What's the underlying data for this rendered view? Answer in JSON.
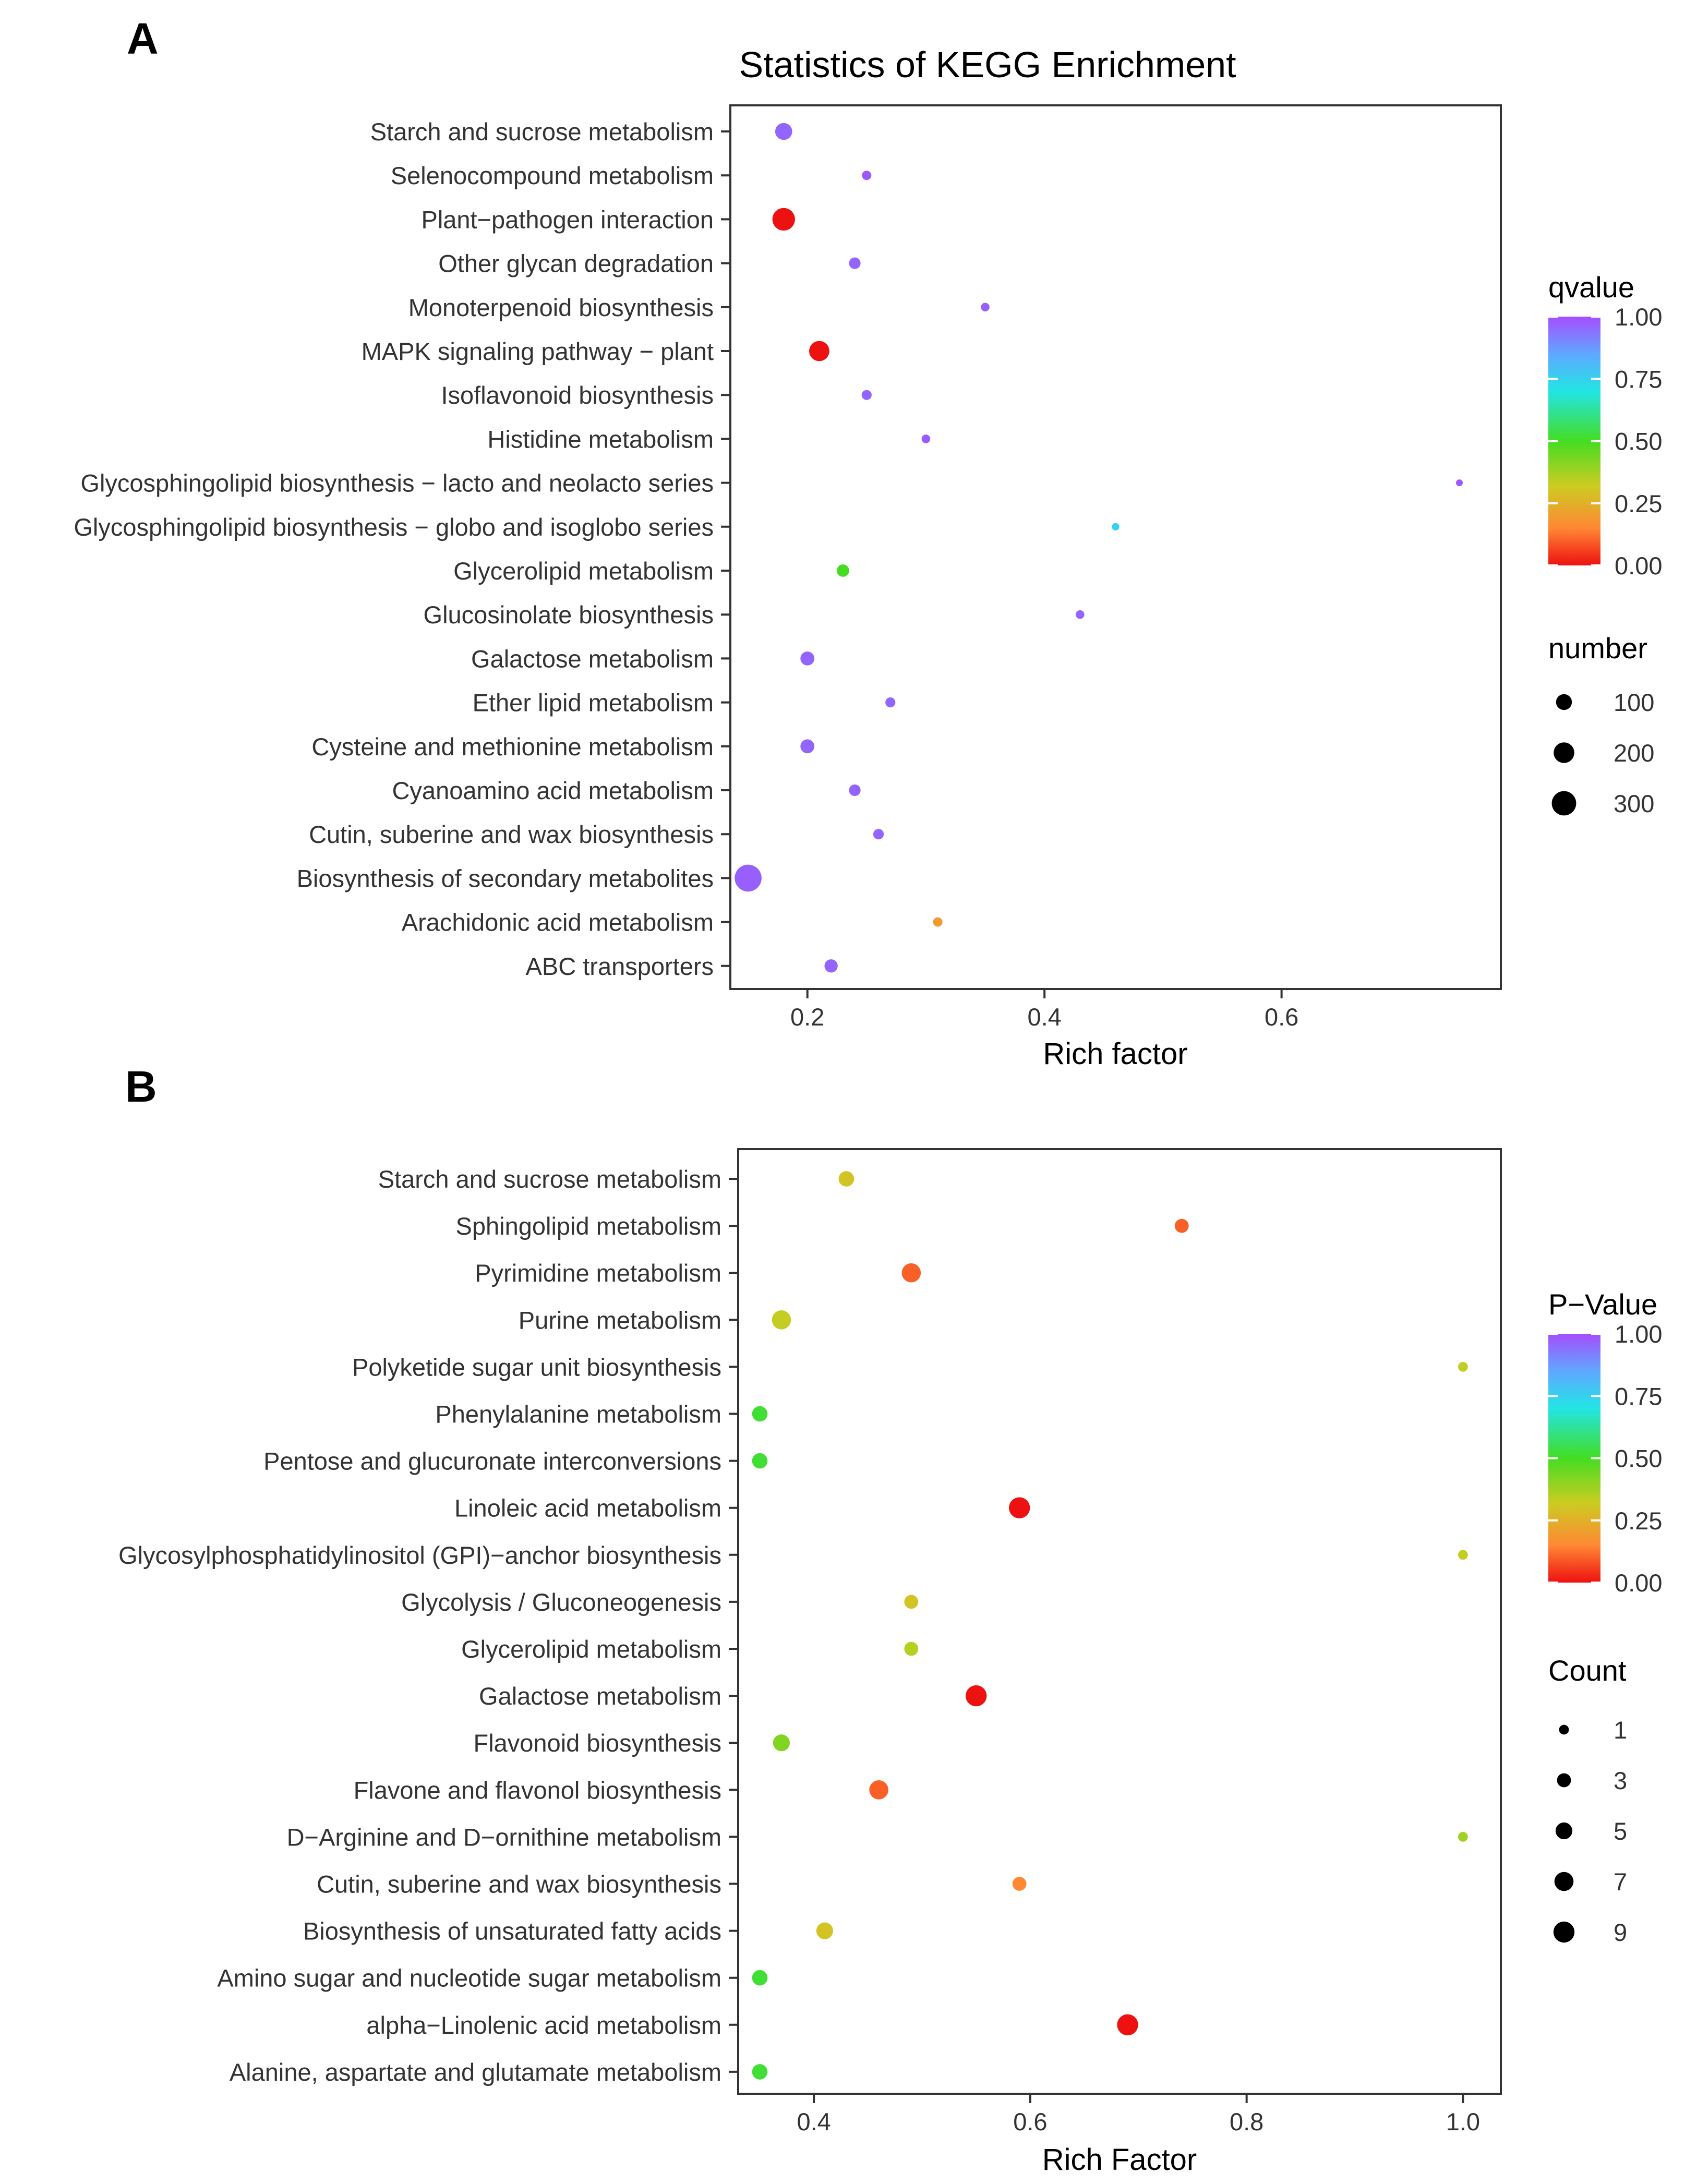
{
  "chart_data": [
    {
      "panel_label": "A",
      "type": "scatter",
      "title": "Statistics of KEGG Enrichment",
      "xlabel": "Rich factor",
      "ylabel": "",
      "xlim": [
        0.135,
        0.785
      ],
      "xticks": [
        0.2,
        0.4,
        0.6
      ],
      "xtick_labels": [
        "0.2",
        "0.4",
        "0.6"
      ],
      "grid": false,
      "color_legend": {
        "title": "qvalue",
        "ticks": [
          1.0,
          0.75,
          0.5,
          0.25,
          0.0
        ],
        "tick_labels": [
          "1.00",
          "0.75",
          "0.50",
          "0.25",
          "0.00"
        ]
      },
      "size_legend": {
        "title": "number",
        "values": [
          100,
          200,
          300
        ],
        "labels": [
          "100",
          "200",
          "300"
        ]
      },
      "points": [
        {
          "term": "Starch and sucrose metabolism",
          "rich_factor": 0.18,
          "qvalue": 0.96,
          "number": 120
        },
        {
          "term": "Selenocompound metabolism",
          "rich_factor": 0.25,
          "qvalue": 0.98,
          "number": 20
        },
        {
          "term": "Plant−pathogen interaction",
          "rich_factor": 0.18,
          "qvalue": 0.0,
          "number": 250
        },
        {
          "term": "Other glycan degradation",
          "rich_factor": 0.24,
          "qvalue": 0.96,
          "number": 40
        },
        {
          "term": "Monoterpenoid biosynthesis",
          "rich_factor": 0.35,
          "qvalue": 0.97,
          "number": 15
        },
        {
          "term": "MAPK signaling pathway − plant",
          "rich_factor": 0.21,
          "qvalue": 0.0,
          "number": 190
        },
        {
          "term": "Isoflavonoid biosynthesis",
          "rich_factor": 0.25,
          "qvalue": 0.96,
          "number": 25
        },
        {
          "term": "Histidine metabolism",
          "rich_factor": 0.3,
          "qvalue": 0.98,
          "number": 15
        },
        {
          "term": "Glycosphingolipid biosynthesis − lacto and neolacto series",
          "rich_factor": 0.75,
          "qvalue": 0.98,
          "number": 5
        },
        {
          "term": "Glycosphingolipid biosynthesis − globo and isoglobo series",
          "rich_factor": 0.46,
          "qvalue": 0.75,
          "number": 8
        },
        {
          "term": "Glycerolipid metabolism",
          "rich_factor": 0.23,
          "qvalue": 0.5,
          "number": 50
        },
        {
          "term": "Glucosinolate biosynthesis",
          "rich_factor": 0.43,
          "qvalue": 0.96,
          "number": 15
        },
        {
          "term": "Galactose metabolism",
          "rich_factor": 0.2,
          "qvalue": 0.96,
          "number": 70
        },
        {
          "term": "Ether lipid metabolism",
          "rich_factor": 0.27,
          "qvalue": 0.96,
          "number": 25
        },
        {
          "term": "Cysteine and methionine metabolism",
          "rich_factor": 0.2,
          "qvalue": 0.96,
          "number": 70
        },
        {
          "term": "Cyanoamino acid metabolism",
          "rich_factor": 0.24,
          "qvalue": 0.96,
          "number": 40
        },
        {
          "term": "Cutin, suberine and wax biosynthesis",
          "rich_factor": 0.26,
          "qvalue": 0.96,
          "number": 30
        },
        {
          "term": "Biosynthesis of secondary metabolites",
          "rich_factor": 0.15,
          "qvalue": 0.97,
          "number": 380
        },
        {
          "term": "Arachidonic acid metabolism",
          "rich_factor": 0.31,
          "qvalue": 0.2,
          "number": 20
        },
        {
          "term": "ABC transporters",
          "rich_factor": 0.22,
          "qvalue": 0.96,
          "number": 60
        }
      ]
    },
    {
      "panel_label": "B",
      "type": "scatter",
      "title": "",
      "xlabel": "Rich Factor",
      "ylabel": "",
      "xlim": [
        0.33,
        1.035
      ],
      "xticks": [
        0.4,
        0.6,
        0.8,
        1.0
      ],
      "xtick_labels": [
        "0.4",
        "0.6",
        "0.8",
        "1.0"
      ],
      "grid": false,
      "color_legend": {
        "title": "P−Value",
        "ticks": [
          1.0,
          0.75,
          0.5,
          0.25,
          0.0
        ],
        "tick_labels": [
          "1.00",
          "0.75",
          "0.50",
          "0.25",
          "0.00"
        ]
      },
      "size_legend": {
        "title": "Count",
        "values": [
          1,
          3,
          5,
          7,
          9
        ],
        "labels": [
          "1",
          "3",
          "5",
          "7",
          "9"
        ]
      },
      "points": [
        {
          "term": "Starch and sucrose metabolism",
          "rich_factor": 0.43,
          "pvalue": 0.3,
          "count": 4
        },
        {
          "term": "Sphingolipid metabolism",
          "rich_factor": 0.74,
          "pvalue": 0.1,
          "count": 3
        },
        {
          "term": "Pyrimidine metabolism",
          "rich_factor": 0.49,
          "pvalue": 0.1,
          "count": 7
        },
        {
          "term": "Purine metabolism",
          "rich_factor": 0.37,
          "pvalue": 0.33,
          "count": 7
        },
        {
          "term": "Polyketide sugar unit biosynthesis",
          "rich_factor": 1.0,
          "pvalue": 0.33,
          "count": 1
        },
        {
          "term": "Phenylalanine metabolism",
          "rich_factor": 0.35,
          "pvalue": 0.52,
          "count": 4
        },
        {
          "term": "Pentose and glucuronate interconversions",
          "rich_factor": 0.35,
          "pvalue": 0.52,
          "count": 4
        },
        {
          "term": "Linoleic acid metabolism",
          "rich_factor": 0.59,
          "pvalue": 0.0,
          "count": 9
        },
        {
          "term": "Glycosylphosphatidylinositol (GPI)−anchor biosynthesis",
          "rich_factor": 1.0,
          "pvalue": 0.33,
          "count": 1
        },
        {
          "term": "Glycolysis / Gluconeogenesis",
          "rich_factor": 0.49,
          "pvalue": 0.3,
          "count": 3
        },
        {
          "term": "Glycerolipid metabolism",
          "rich_factor": 0.49,
          "pvalue": 0.35,
          "count": 3
        },
        {
          "term": "Galactose metabolism",
          "rich_factor": 0.55,
          "pvalue": 0.0,
          "count": 9
        },
        {
          "term": "Flavonoid biosynthesis",
          "rich_factor": 0.37,
          "pvalue": 0.42,
          "count": 5
        },
        {
          "term": "Flavone and flavonol biosynthesis",
          "rich_factor": 0.46,
          "pvalue": 0.1,
          "count": 7
        },
        {
          "term": "D−Arginine and D−ornithine metabolism",
          "rich_factor": 1.0,
          "pvalue": 0.38,
          "count": 1
        },
        {
          "term": "Cutin, suberine and wax biosynthesis",
          "rich_factor": 0.59,
          "pvalue": 0.15,
          "count": 3
        },
        {
          "term": "Biosynthesis of unsaturated fatty acids",
          "rich_factor": 0.41,
          "pvalue": 0.3,
          "count": 5
        },
        {
          "term": "Amino sugar and nucleotide sugar metabolism",
          "rich_factor": 0.35,
          "pvalue": 0.52,
          "count": 4
        },
        {
          "term": "alpha−Linolenic acid metabolism",
          "rich_factor": 0.69,
          "pvalue": 0.0,
          "count": 9
        },
        {
          "term": "Alanine, aspartate and glutamate metabolism",
          "rich_factor": 0.35,
          "pvalue": 0.52,
          "count": 4
        }
      ]
    }
  ],
  "colors": {
    "gradient_top": "#a64dff",
    "gradient_upper": "#5fa8ff",
    "gradient_mid_upper": "#22e5e5",
    "gradient_mid": "#44dd22",
    "gradient_mid_lower": "#cccc22",
    "gradient_lower": "#ff8833",
    "gradient_bottom": "#ee1111",
    "axis": "#333333",
    "text": "#333333",
    "heading": "#000000"
  }
}
